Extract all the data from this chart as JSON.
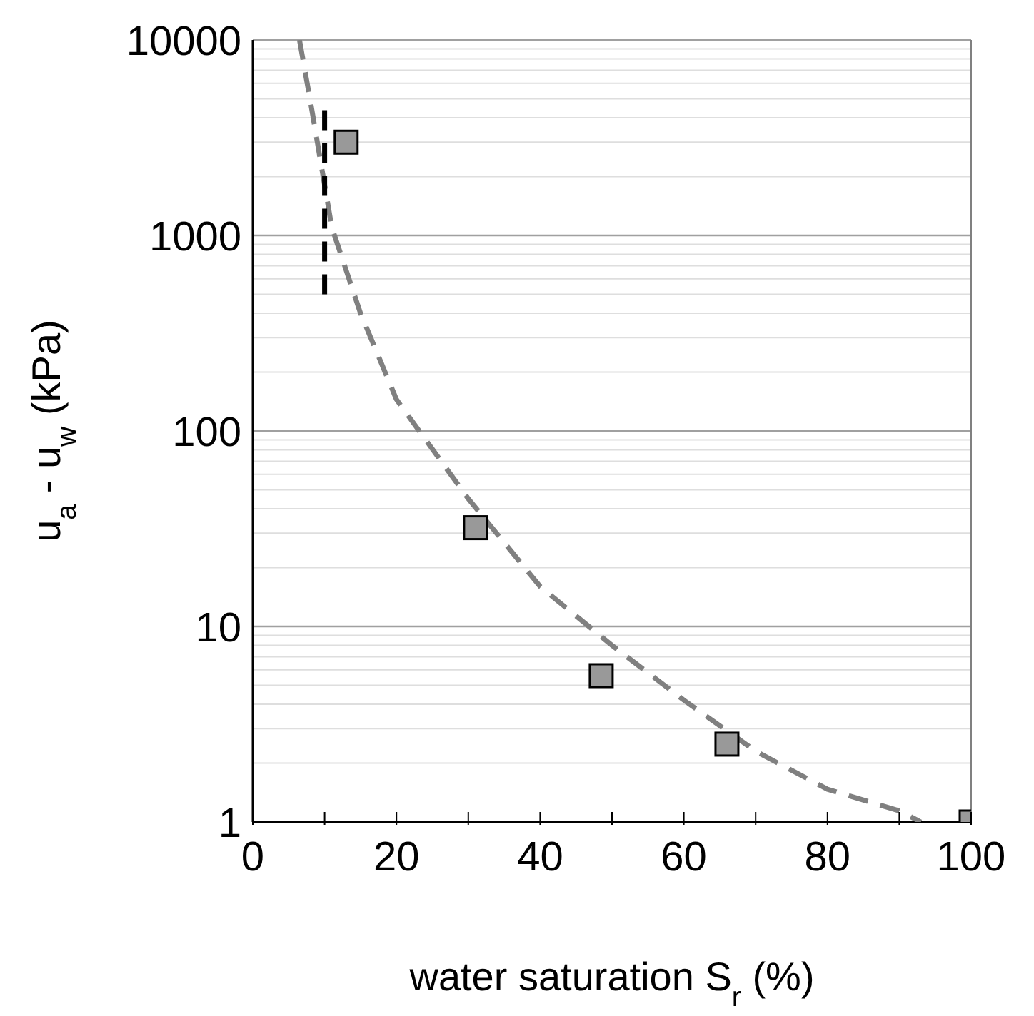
{
  "chart_data": {
    "type": "scatter",
    "xlabel": "water saturation S$_{r}$ (%)",
    "ylabel": "u$_{a}$ - u$_{w}$ (kPa)",
    "log": "y",
    "grid": "y",
    "xlim": [
      0,
      100
    ],
    "xticks": [
      0,
      {
        "value": 10,
        "label": null
      },
      20,
      {
        "value": 30,
        "label": null
      },
      40,
      {
        "value": 50,
        "label": null
      },
      60,
      {
        "value": 70,
        "label": null
      },
      80,
      {
        "value": 90,
        "label": null
      },
      100
    ],
    "ylim": [
      1,
      10000
    ],
    "yticks": [
      1,
      {
        "value": 2,
        "label": null
      },
      {
        "value": 3,
        "label": null
      },
      {
        "value": 4,
        "label": null
      },
      {
        "value": 5,
        "label": null
      },
      {
        "value": 6,
        "label": null
      },
      {
        "value": 7,
        "label": null
      },
      {
        "value": 8,
        "label": null
      },
      {
        "value": 9,
        "label": null
      },
      10,
      {
        "value": 20,
        "label": null
      },
      {
        "value": 30,
        "label": null
      },
      {
        "value": 40,
        "label": null
      },
      {
        "value": 50,
        "label": null
      },
      {
        "value": 60,
        "label": null
      },
      {
        "value": 70,
        "label": null
      },
      {
        "value": 80,
        "label": null
      },
      {
        "value": 90,
        "label": null
      },
      100,
      {
        "value": 200,
        "label": null
      },
      {
        "value": 300,
        "label": null
      },
      {
        "value": 400,
        "label": null
      },
      {
        "value": 500,
        "label": null
      },
      {
        "value": 600,
        "label": null
      },
      {
        "value": 700,
        "label": null
      },
      {
        "value": 800,
        "label": null
      },
      {
        "value": 900,
        "label": null
      },
      1000,
      {
        "value": 2000,
        "label": null
      },
      {
        "value": 3000,
        "label": null
      },
      {
        "value": 4000,
        "label": null
      },
      {
        "value": 5000,
        "label": null
      },
      {
        "value": 6000,
        "label": null
      },
      {
        "value": 7000,
        "label": null
      },
      {
        "value": 8000,
        "label": null
      },
      {
        "value": 9000,
        "label": null
      },
      10000
    ],
    "series": [
      {
        "type": "line",
        "color": "#808080",
        "marker": "none",
        "line_style": "dashed",
        "x": [
          6.5,
          8,
          11,
          15,
          20,
          30,
          40,
          50,
          60,
          70,
          80,
          90,
          93
        ],
        "values": [
          10000,
          4900,
          1100,
          400,
          145,
          45,
          16,
          8,
          4.2,
          2.3,
          1.47,
          1.14,
          1.0
        ]
      },
      {
        "type": "line",
        "color": "#000000",
        "marker": "none",
        "line_style": "dashed",
        "x": [
          10,
          10
        ],
        "values": [
          500,
          4500
        ]
      },
      {
        "color": "#999999",
        "marker": "square",
        "x": [
          13,
          31,
          48.5,
          66,
          100
        ],
        "values": [
          3000,
          32,
          5.6,
          2.5,
          1
        ]
      }
    ]
  }
}
